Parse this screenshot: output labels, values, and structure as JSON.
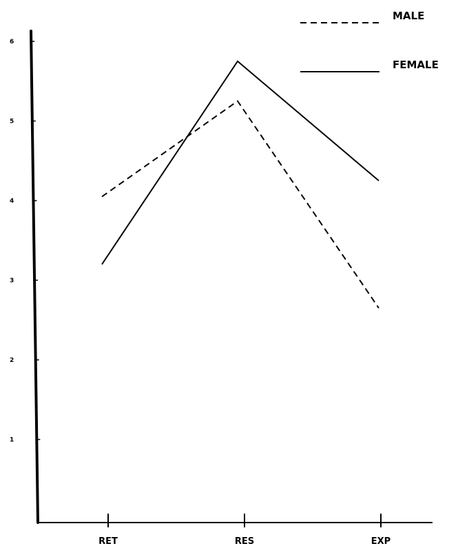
{
  "chart_data": {
    "type": "line",
    "categories": [
      "RET",
      "RES",
      "EXP"
    ],
    "series": [
      {
        "name": "MALE",
        "values": [
          4.05,
          5.25,
          2.65
        ],
        "style": "dashed",
        "color": "#000000"
      },
      {
        "name": "FEMALE",
        "values": [
          3.2,
          5.75,
          4.25
        ],
        "style": "solid",
        "color": "#000000"
      }
    ],
    "yticks": [
      1,
      2,
      3,
      4,
      5,
      6
    ],
    "ylim": [
      0,
      6
    ],
    "title": "",
    "xlabel": "",
    "ylabel": "",
    "grid": false,
    "legend_position": "top-right"
  }
}
